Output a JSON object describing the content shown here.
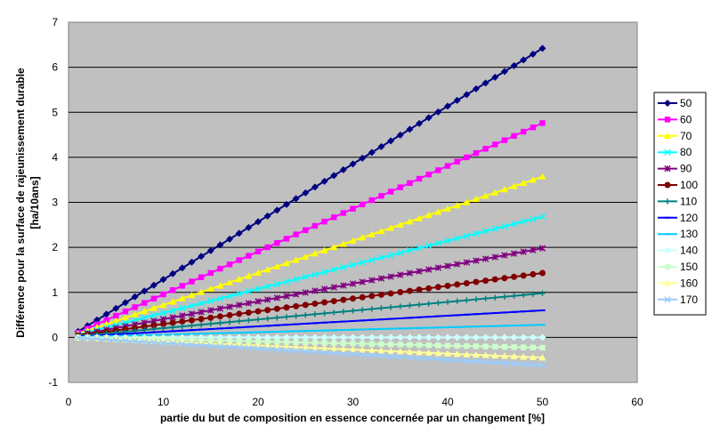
{
  "chart_data": {
    "type": "line",
    "xlabel": "partie du but de composition en essence concernée par un changement [%]",
    "ylabel_lines": [
      "Différence pour la surface de rajeunissement durable",
      "[ha/10ans]"
    ],
    "xlim": [
      0,
      60
    ],
    "ylim": [
      -1,
      7
    ],
    "x_ticks": [
      "0",
      "10",
      "20",
      "30",
      "40",
      "50",
      "60"
    ],
    "y_ticks": [
      "-1",
      "0",
      "1",
      "2",
      "3",
      "4",
      "5",
      "6",
      "7"
    ],
    "grid": true,
    "legend_position": "right",
    "x_range": [
      1,
      50
    ],
    "plot_background": "#c0c0c0",
    "series": [
      {
        "name": "50",
        "start": 0.13,
        "end": 6.42,
        "color": "#000080",
        "marker": "diamond"
      },
      {
        "name": "60",
        "start": 0.1,
        "end": 4.76,
        "color": "#ff00ff",
        "marker": "square"
      },
      {
        "name": "70",
        "start": 0.08,
        "end": 3.57,
        "color": "#ffff00",
        "marker": "triangle"
      },
      {
        "name": "80",
        "start": 0.06,
        "end": 2.68,
        "color": "#00ffff",
        "marker": "x"
      },
      {
        "name": "90",
        "start": 0.05,
        "end": 1.98,
        "color": "#800080",
        "marker": "star"
      },
      {
        "name": "100",
        "start": 0.04,
        "end": 1.43,
        "color": "#800000",
        "marker": "circle"
      },
      {
        "name": "110",
        "start": 0.03,
        "end": 0.98,
        "color": "#008080",
        "marker": "plus"
      },
      {
        "name": "120",
        "start": 0.02,
        "end": 0.6,
        "color": "#0000ff",
        "marker": "dash"
      },
      {
        "name": "130",
        "start": 0.01,
        "end": 0.28,
        "color": "#00ccff",
        "marker": "dash"
      },
      {
        "name": "140",
        "start": 0.0,
        "end": 0.0,
        "color": "#ccffff",
        "marker": "diamond"
      },
      {
        "name": "150",
        "start": 0.0,
        "end": -0.23,
        "color": "#ccffcc",
        "marker": "square"
      },
      {
        "name": "160",
        "start": -0.01,
        "end": -0.45,
        "color": "#ffff99",
        "marker": "triangle"
      },
      {
        "name": "170",
        "start": -0.01,
        "end": -0.62,
        "color": "#99ccff",
        "marker": "x"
      }
    ]
  }
}
